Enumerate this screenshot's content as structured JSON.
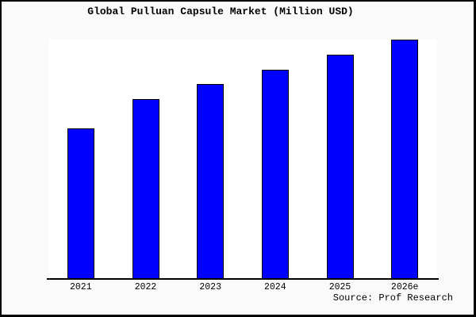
{
  "figure": {
    "background": "#FAFAFA",
    "frame_color": "#000000"
  },
  "source": "Source: Prof Research",
  "chart_data": {
    "type": "bar",
    "title": "Global Pulluan Capsule Market (Million USD)",
    "categories": [
      "2021",
      "2022",
      "2023",
      "2024",
      "2025",
      "2026e"
    ],
    "values": [
      62.9,
      75.2,
      81.5,
      87.4,
      93.7,
      100
    ],
    "xlabel": "",
    "ylabel": "",
    "ylim": [
      0,
      100
    ],
    "grid": false,
    "legend": false,
    "y_axis_labels_visible": false,
    "annotations": [
      "Source: Prof Research"
    ],
    "colors": {
      "bar_fill": "#0000FF",
      "bar_border": "#000000",
      "plot_background": "#FFFFFF",
      "figure_background": "#FAFAFA",
      "axis_line": "#000000",
      "text": "#000000"
    }
  }
}
